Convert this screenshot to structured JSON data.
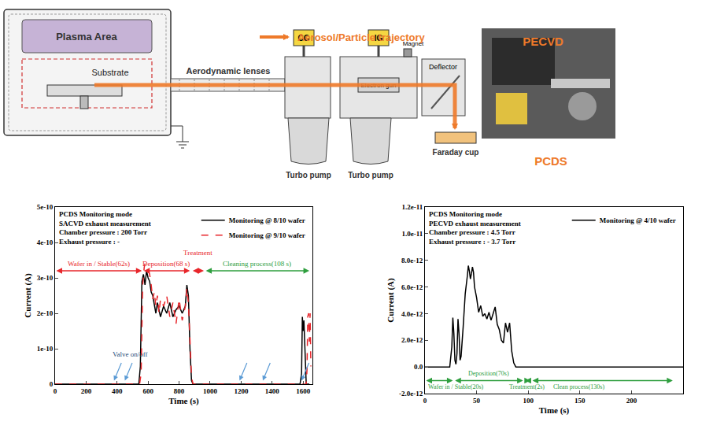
{
  "diagram": {
    "title": "Aerosol/Particle trajectory",
    "plasma": "Plasma Area",
    "substrate": "Substrate",
    "lens": "Aerodynamic lenses",
    "gauges": [
      "CG",
      "IG"
    ],
    "electron_gun": "Electron gun",
    "magnet": "Magnet",
    "deflector": "Deflector",
    "pumps": [
      "Turbo pump",
      "Turbo pump"
    ],
    "detector": "Faraday cup",
    "photo_labels": [
      "PECVD",
      "PCDS"
    ]
  },
  "chart_data": [
    {
      "type": "line",
      "notes": [
        "PCDS Monitoring mode",
        "SACVD exhaust measurement",
        "Chamber pressure : 200 Torr",
        "Exhaust pressure : -"
      ],
      "x_label": "Time (s)",
      "y_label": "Current (A)",
      "xlim": [
        0,
        1660
      ],
      "xticks": [
        0,
        200,
        400,
        600,
        800,
        1000,
        1200,
        1400,
        1600
      ],
      "ylim": [
        0,
        5e-10
      ],
      "yticks": [
        0,
        {
          "value": 1e-10,
          "label": "1e-10"
        },
        {
          "value": 2e-10,
          "label": "2e-10"
        },
        {
          "value": 3e-10,
          "label": "3e-10"
        },
        {
          "value": 4e-10,
          "label": "4e-10"
        },
        {
          "value": 5e-10,
          "label": "5e-10"
        }
      ],
      "grid": false,
      "legend": "upper right",
      "series": [
        {
          "name": "Monitoring @ 8/10 wafer",
          "color": "#000000",
          "line_style": "solid",
          "x": [
            0,
            100,
            200,
            300,
            400,
            500,
            540,
            550,
            560,
            570,
            580,
            590,
            600,
            610,
            620,
            630,
            640,
            650,
            660,
            680,
            700,
            720,
            740,
            760,
            780,
            800,
            820,
            840,
            850,
            860,
            870,
            880,
            890,
            900,
            1000,
            1200,
            1400,
            1580,
            1590,
            1595,
            1600,
            1605,
            1610,
            1615,
            1620,
            1640
          ],
          "values": [
            0,
            0,
            0,
            0,
            0,
            0,
            0,
            5e-11,
            2.9e-10,
            3.1e-10,
            2.8e-10,
            3.2e-10,
            3e-10,
            2.9e-10,
            2.6e-10,
            2.5e-10,
            2.2e-10,
            2e-10,
            2.3e-10,
            1.9e-10,
            2.2e-10,
            2e-10,
            2.3e-10,
            1.9e-10,
            2.1e-10,
            2.2e-10,
            2e-10,
            2.2e-10,
            2.8e-10,
            2.5e-10,
            1e-10,
            1e-11,
            0,
            0,
            0,
            0,
            0,
            0,
            3e-11,
            1.9e-10,
            1.5e-10,
            1.8e-10,
            1.2e-10,
            3e-11,
            0,
            0
          ]
        },
        {
          "name": "Monitoring @ 9/10 wafer",
          "color": "#e8262b",
          "line_style": "dashed",
          "x": [
            0,
            100,
            200,
            300,
            400,
            500,
            545,
            555,
            565,
            575,
            580,
            590,
            600,
            610,
            620,
            630,
            640,
            650,
            660,
            670,
            680,
            700,
            720,
            740,
            760,
            780,
            800,
            820,
            840,
            850,
            860,
            870,
            880,
            890,
            900,
            1000,
            1200,
            1400,
            1600,
            1620,
            1625,
            1630,
            1635,
            1640,
            1645,
            1650
          ],
          "values": [
            0,
            0,
            0,
            0,
            0,
            0,
            0,
            3e-11,
            2.8e-10,
            3.3e-10,
            3.4e-10,
            3.3e-10,
            3.2e-10,
            3.1e-10,
            2.8e-10,
            2.4e-10,
            2.6e-10,
            2.2e-10,
            2.5e-10,
            2e-10,
            2.4e-10,
            2.2e-10,
            2.5e-10,
            1.9e-10,
            2.3e-10,
            1.7e-10,
            2.4e-10,
            1.8e-10,
            2.2e-10,
            2.7e-10,
            2.3e-10,
            1.4e-10,
            2e-11,
            0,
            0,
            0,
            0,
            0,
            0,
            0,
            4e-11,
            1.9e-10,
            2e-10,
            1.2e-10,
            2e-10,
            5e-11
          ]
        }
      ],
      "phases": [
        {
          "label": "Wafer in / Stable(62s)",
          "start": 0,
          "end": 560,
          "color": "#e8262b"
        },
        {
          "label": "Deposition(68 s)",
          "start": 565,
          "end": 870,
          "color": "#e8262b"
        },
        {
          "label": "Treatment",
          "start": 880,
          "end": 960,
          "color": "#e8262b"
        },
        {
          "label": "Cleaning process(108 s)",
          "start": 965,
          "end": 1640,
          "color": "#2e9e3e"
        }
      ],
      "valve": {
        "label": "Valve on/off",
        "x": [
          380,
          450,
          1190,
          1340,
          1590
        ],
        "color": "#5b9bd5"
      }
    },
    {
      "type": "line",
      "notes": [
        "PCDS Monitoring mode",
        "PECVD exhaust measurement",
        "Chamber pressure : 4.5 Torr",
        "Exhaust pressure : - 3.7 Torr"
      ],
      "x_label": "Time (s)",
      "y_label": "Current (A)",
      "xlim": [
        0,
        250
      ],
      "xticks": [
        0,
        50,
        100,
        150,
        200
      ],
      "ylim": [
        -2e-12,
        1.2e-11
      ],
      "yticks": [
        {
          "value": -2e-12,
          "label": "-2.0e-12"
        },
        {
          "value": 0,
          "label": "0.0"
        },
        {
          "value": 2e-12,
          "label": "2.0e-12"
        },
        {
          "value": 4e-12,
          "label": "4.0e-12"
        },
        {
          "value": 6e-12,
          "label": "6.0e-12"
        },
        {
          "value": 8e-12,
          "label": "8.0e-12"
        },
        {
          "value": 1e-11,
          "label": "1.0e-11"
        },
        {
          "value": 1.2e-11,
          "label": "1.2e-11"
        }
      ],
      "grid": false,
      "legend": "upper right",
      "series": [
        {
          "name": "Monitoring @ 4/10 wafer",
          "color": "#000000",
          "line_style": "solid",
          "x": [
            0,
            10,
            20,
            24,
            26,
            27,
            28,
            29,
            30,
            31,
            32,
            33,
            34,
            35,
            37,
            39,
            41,
            42,
            43,
            44,
            45,
            46,
            47,
            48,
            50,
            52,
            54,
            56,
            58,
            60,
            62,
            64,
            66,
            68,
            70,
            72,
            74,
            76,
            78,
            80,
            82,
            84,
            86,
            88,
            90,
            100,
            150,
            200,
            250
          ],
          "values": [
            0,
            0,
            0,
            0,
            1.5e-12,
            3.7e-12,
            2.5e-12,
            5e-13,
            2e-13,
            1e-12,
            3.6e-12,
            2.5e-12,
            5e-13,
            8e-13,
            3e-12,
            5.5e-12,
            6.8e-12,
            7.6e-12,
            7.2e-12,
            6.6e-12,
            7e-12,
            7.5e-12,
            7.1e-12,
            6e-12,
            5.2e-12,
            4.1e-12,
            4.6e-12,
            3.8e-12,
            4e-12,
            3.6e-12,
            4.1e-12,
            3.5e-12,
            4e-12,
            4.5e-12,
            3.2e-12,
            2.8e-12,
            2e-12,
            1.8e-12,
            3.3e-12,
            2.6e-12,
            3.3e-12,
            1.2e-12,
            3e-13,
            0,
            0,
            0,
            0,
            0,
            0
          ]
        }
      ],
      "phases": [
        {
          "label": "Wafer in / Stable(20s)",
          "start": 0,
          "end": 27,
          "color": "#2e9e3e"
        },
        {
          "label": "Deposition(70s)",
          "start": 28,
          "end": 95,
          "color": "#2e9e3e"
        },
        {
          "label": "Treatment(2s)",
          "start": 96,
          "end": 102,
          "color": "#2e9e3e"
        },
        {
          "label": "Clean process(130s)",
          "start": 103,
          "end": 240,
          "color": "#2e9e3e"
        }
      ]
    }
  ]
}
